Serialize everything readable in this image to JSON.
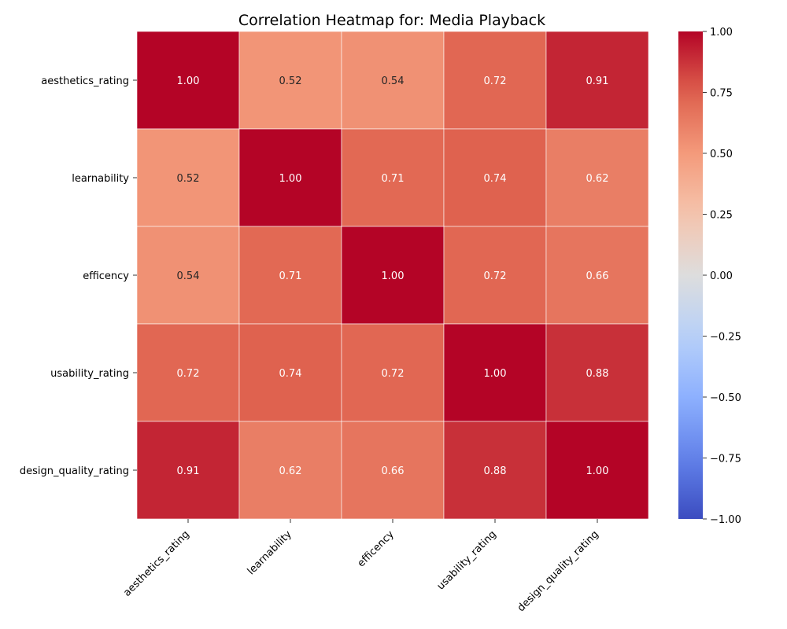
{
  "chart_data": {
    "type": "heatmap",
    "title": "Correlation Heatmap for: Media Playback",
    "xlabel": "",
    "ylabel": "",
    "labels": [
      "aesthetics_rating",
      "learnability",
      "efficency",
      "usability_rating",
      "design_quality_rating"
    ],
    "values": [
      [
        1.0,
        0.52,
        0.54,
        0.72,
        0.91
      ],
      [
        0.52,
        1.0,
        0.71,
        0.74,
        0.62
      ],
      [
        0.54,
        0.71,
        1.0,
        0.72,
        0.66
      ],
      [
        0.72,
        0.74,
        0.72,
        1.0,
        0.88
      ],
      [
        0.91,
        0.62,
        0.66,
        0.88,
        1.0
      ]
    ],
    "value_format": "0.00",
    "colormap": "coolwarm",
    "vmin": -1.0,
    "vmax": 1.0,
    "colorbar_ticks": [
      "1.00",
      "0.75",
      "0.50",
      "0.25",
      "0.00",
      "−0.25",
      "−0.50",
      "−0.75",
      "−1.00"
    ],
    "colorbar_tick_values": [
      1.0,
      0.75,
      0.5,
      0.25,
      0.0,
      -0.25,
      -0.5,
      -0.75,
      -1.0
    ],
    "cell_border_color": "#ffffff",
    "legend": "colorbar-right"
  }
}
